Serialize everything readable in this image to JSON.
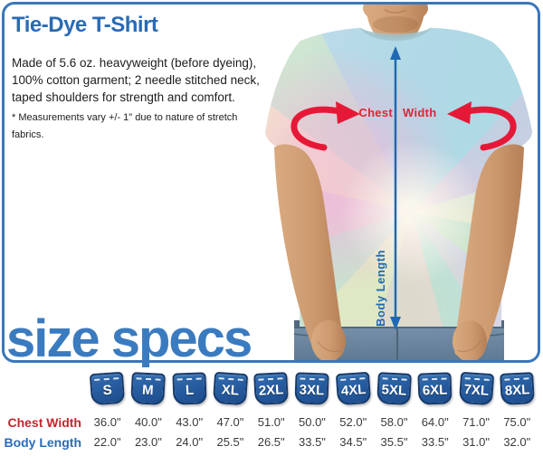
{
  "header": {
    "title": "Tie-Dye T-Shirt",
    "description_lines": [
      "Made of 5.6 oz. heavyweight (before dyeing),",
      "100% cotton garment; 2 needle stitched neck,",
      "taped shoulders for strength and comfort."
    ],
    "footnote": "* Measurements vary +/- 1\" due to nature of stretch fabrics."
  },
  "diagram": {
    "chest_label": "Chest",
    "width_label": "Width",
    "body_length_label": "Body Length"
  },
  "size_specs_heading": "size specs",
  "size_table": {
    "sizes": [
      "S",
      "M",
      "L",
      "XL",
      "2XL",
      "3XL",
      "4XL",
      "5XL",
      "6XL",
      "7XL",
      "8XL"
    ],
    "rows": [
      {
        "label": "Chest Width",
        "values": [
          "36.0\"",
          "40.0\"",
          "43.0\"",
          "47.0\"",
          "51.0\"",
          "50.0\"",
          "52.0\"",
          "58.0\"",
          "64.0\"",
          "71.0\"",
          "75.0\""
        ]
      },
      {
        "label": "Body Length",
        "values": [
          "22.0\"",
          "23.0\"",
          "24.0\"",
          "25.5\"",
          "26.5\"",
          "33.5\"",
          "34.5\"",
          "35.5\"",
          "33.5\"",
          "31.0\"",
          "32.0\""
        ]
      }
    ]
  },
  "colors": {
    "accent_blue": "#2f6fb6",
    "heading_blue": "#3a7bc0",
    "label_red": "#c4262e",
    "arrow_red": "#e51937",
    "arrow_blue": "#1e6ab2",
    "tab_navy": "#1d4c8c"
  }
}
